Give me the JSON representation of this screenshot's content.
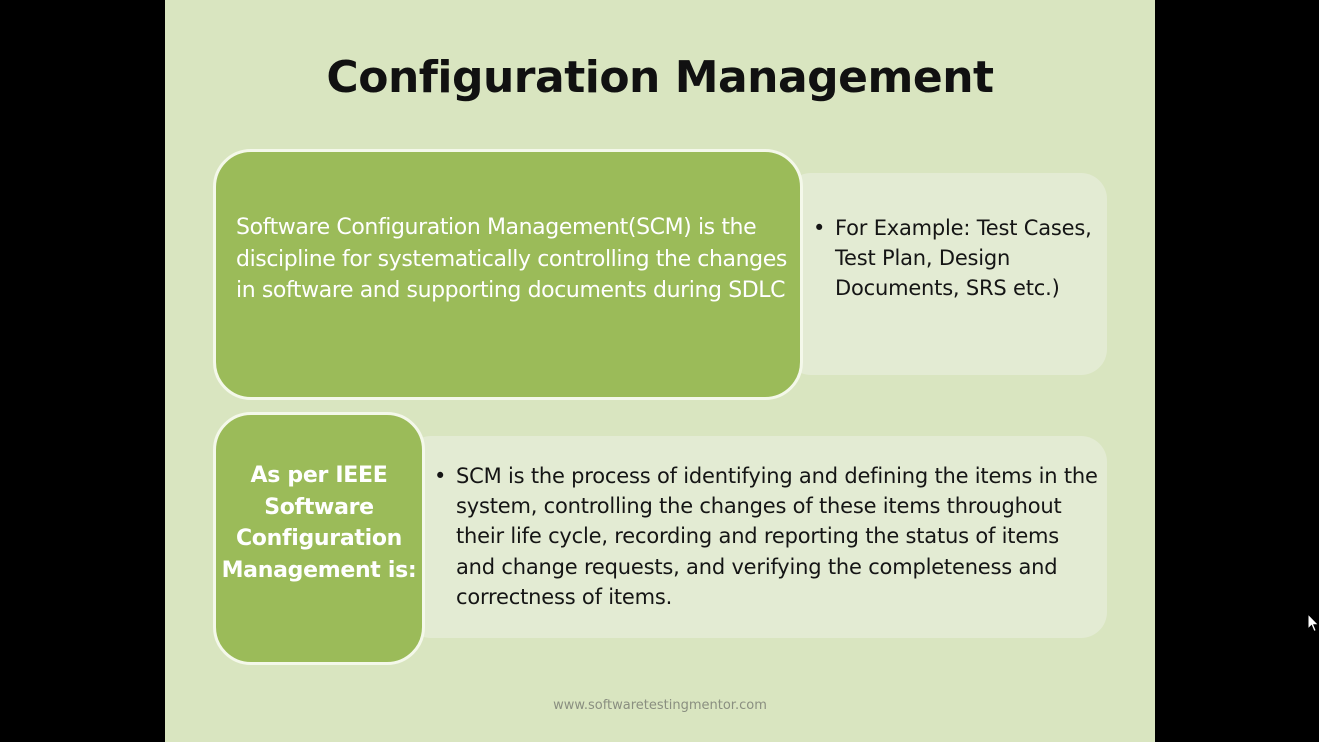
{
  "slide": {
    "title": "Configuration Management",
    "scm_definition": "Software Configuration Management(SCM) is the discipline for systematically controlling the changes in software and supporting documents  during SDLC",
    "example_bullet": "For Example: Test Cases, Test Plan, Design Documents, SRS etc.)",
    "ieee_label": "As per IEEE Software Configuration Management is:",
    "ieee_bullet": "SCM is the process of identifying and defining the items in the system, controlling the changes of these items throughout their life cycle, recording and reporting the status of items and change requests, and verifying the completeness and correctness of items.",
    "footer": "www.softwaretestingmentor.com",
    "bullet_glyph": "•"
  },
  "colors": {
    "background": "#000000",
    "slide_background": "#d9e5c0",
    "green_box": "#9bbb59",
    "pale_panel": "#e3ebd3",
    "title_text": "#111111"
  },
  "icons": {
    "cursor": "mouse-pointer-icon"
  }
}
